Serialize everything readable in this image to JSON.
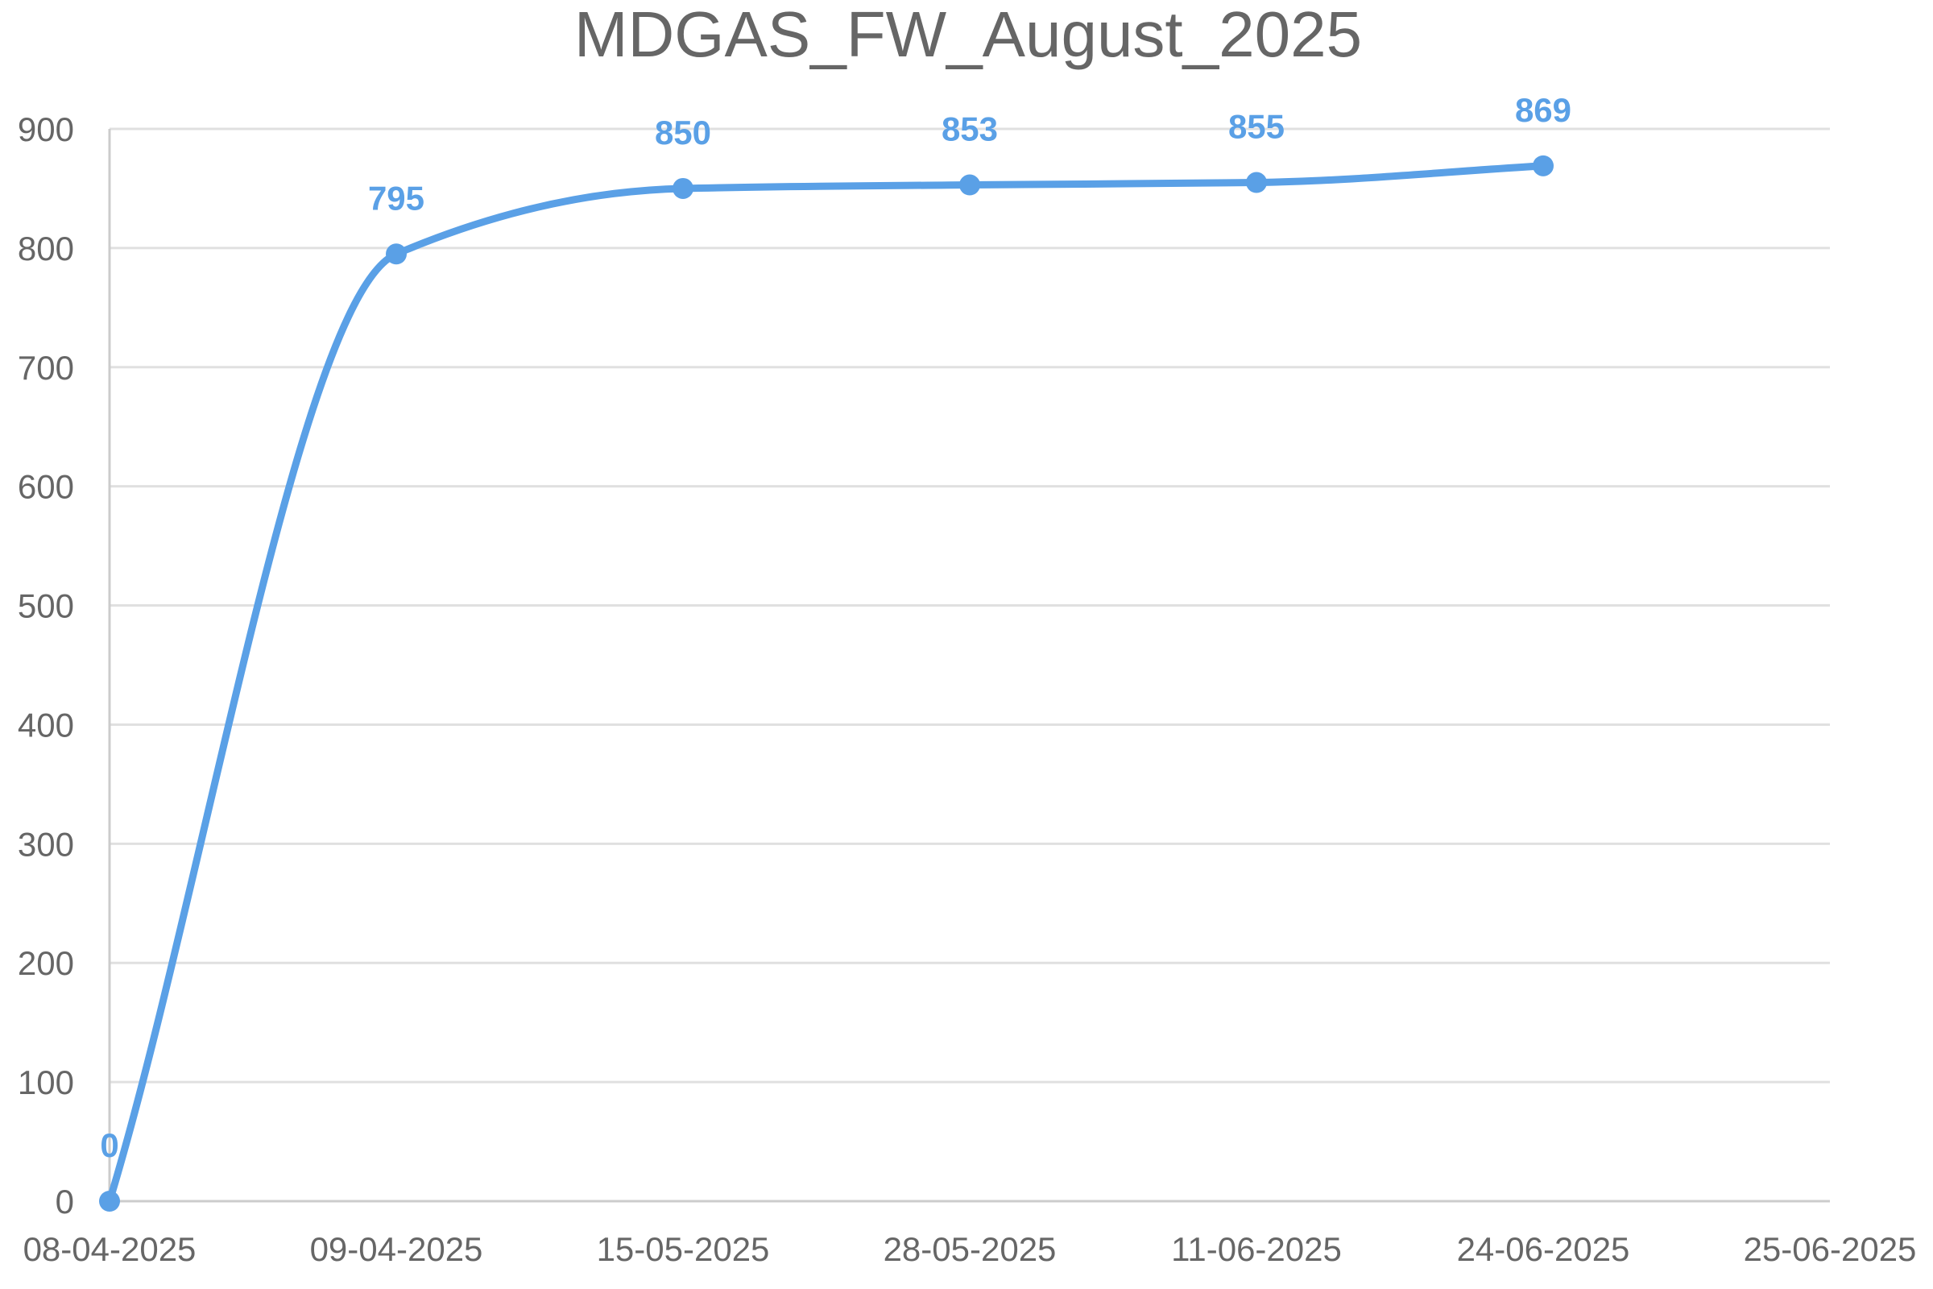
{
  "chart_data": {
    "type": "line",
    "title": "MDGAS_FW_August_2025",
    "xlabel": "",
    "ylabel": "",
    "categories": [
      "08-04-2025",
      "09-04-2025",
      "15-05-2025",
      "28-05-2025",
      "11-06-2025",
      "24-06-2025",
      "25-06-2025"
    ],
    "series": [
      {
        "values": [
          0,
          795,
          850,
          853,
          855,
          869,
          null
        ],
        "data_labels": [
          "0",
          "795",
          "850",
          "853",
          "855",
          "869"
        ],
        "color": "#5aa0e6"
      }
    ],
    "ylim": [
      0,
      900
    ],
    "y_ticks": [
      0,
      100,
      200,
      300,
      400,
      500,
      600,
      700,
      800,
      900
    ],
    "grid": true,
    "legend": "none",
    "smooth": true
  }
}
